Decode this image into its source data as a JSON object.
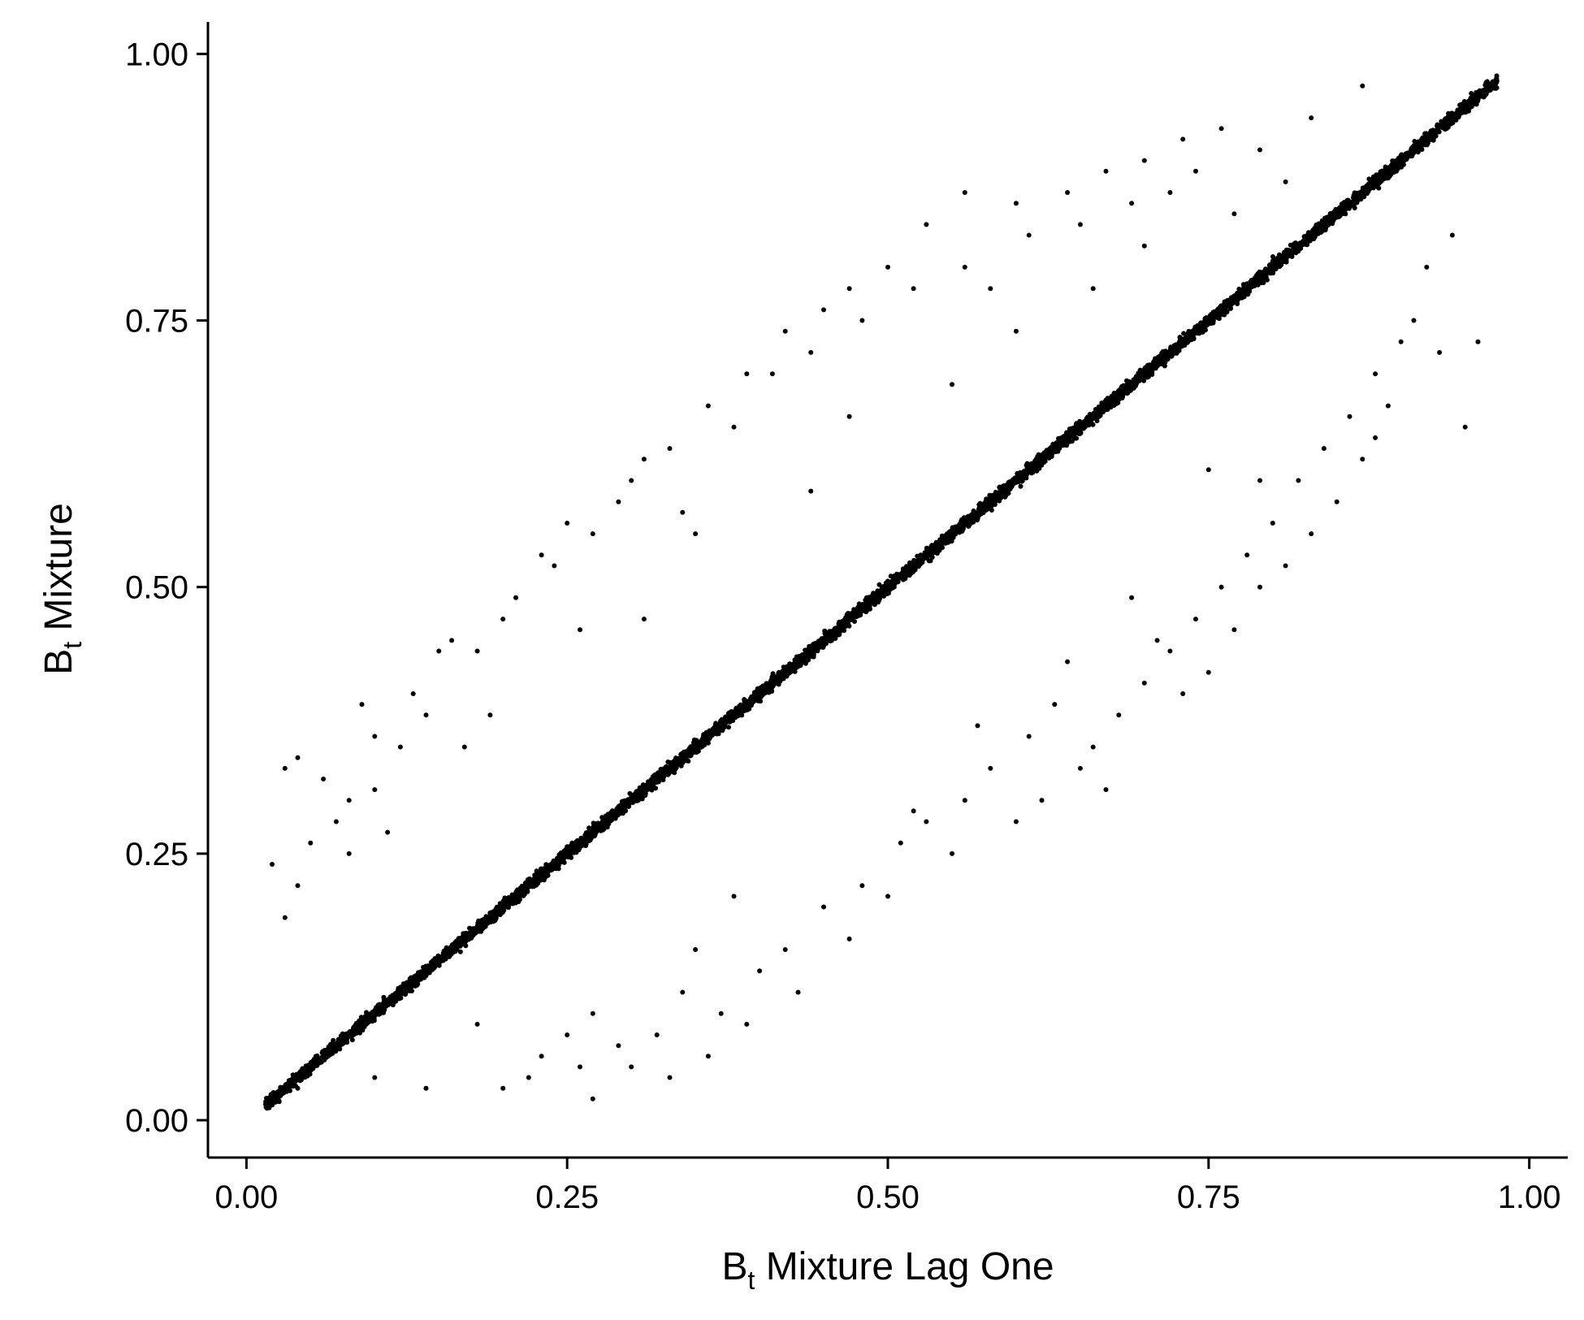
{
  "chart_data": {
    "type": "scatter",
    "title": "",
    "xlabel": {
      "base": "B",
      "sub": "t",
      "rest": " Mixture Lag One"
    },
    "ylabel": {
      "base": "B",
      "sub": "t",
      "rest": " Mixture"
    },
    "xlim": [
      -0.03,
      1.03
    ],
    "ylim": [
      -0.035,
      1.03
    ],
    "xticks": [
      0,
      0.25,
      0.5,
      0.75,
      1
    ],
    "yticks": [
      0,
      0.25,
      0.5,
      0.75,
      1
    ],
    "xtick_labels": [
      "0.00",
      "0.25",
      "0.50",
      "0.75",
      "1.00"
    ],
    "ytick_labels": [
      "0.00",
      "0.25",
      "0.50",
      "0.75",
      "1.00"
    ],
    "grid": false,
    "legend": "none",
    "point_color": "#000000",
    "series": [
      {
        "type": "dense-diagonal-band",
        "x_range": [
          0.015,
          0.975
        ],
        "y_equals_x_spread": 0.012,
        "description_points_estimated": 6000
      },
      {
        "type": "points",
        "values": [
          [
            0.03,
            0.33
          ],
          [
            0.04,
            0.34
          ],
          [
            0.06,
            0.32
          ],
          [
            0.09,
            0.39
          ],
          [
            0.1,
            0.36
          ],
          [
            0.13,
            0.4
          ],
          [
            0.15,
            0.44
          ],
          [
            0.16,
            0.45
          ],
          [
            0.2,
            0.47
          ],
          [
            0.23,
            0.53
          ],
          [
            0.25,
            0.56
          ],
          [
            0.27,
            0.55
          ],
          [
            0.3,
            0.6
          ],
          [
            0.31,
            0.62
          ],
          [
            0.33,
            0.63
          ],
          [
            0.36,
            0.67
          ],
          [
            0.39,
            0.7
          ],
          [
            0.42,
            0.74
          ],
          [
            0.45,
            0.76
          ],
          [
            0.47,
            0.78
          ],
          [
            0.5,
            0.8
          ],
          [
            0.53,
            0.84
          ],
          [
            0.56,
            0.87
          ],
          [
            0.6,
            0.86
          ],
          [
            0.64,
            0.87
          ],
          [
            0.67,
            0.89
          ],
          [
            0.7,
            0.9
          ],
          [
            0.73,
            0.92
          ],
          [
            0.76,
            0.93
          ],
          [
            0.79,
            0.91
          ],
          [
            0.83,
            0.94
          ],
          [
            0.87,
            0.97
          ],
          [
            0.02,
            0.24
          ],
          [
            0.05,
            0.26
          ],
          [
            0.07,
            0.28
          ],
          [
            0.08,
            0.3
          ],
          [
            0.1,
            0.31
          ],
          [
            0.12,
            0.35
          ],
          [
            0.14,
            0.38
          ],
          [
            0.18,
            0.44
          ],
          [
            0.21,
            0.49
          ],
          [
            0.24,
            0.52
          ],
          [
            0.29,
            0.58
          ],
          [
            0.34,
            0.57
          ],
          [
            0.38,
            0.65
          ],
          [
            0.41,
            0.7
          ],
          [
            0.44,
            0.72
          ],
          [
            0.48,
            0.75
          ],
          [
            0.52,
            0.78
          ],
          [
            0.56,
            0.8
          ],
          [
            0.58,
            0.78
          ],
          [
            0.61,
            0.83
          ],
          [
            0.65,
            0.84
          ],
          [
            0.69,
            0.86
          ],
          [
            0.72,
            0.87
          ],
          [
            0.74,
            0.89
          ],
          [
            0.77,
            0.85
          ],
          [
            0.81,
            0.88
          ],
          [
            0.03,
            0.19
          ],
          [
            0.04,
            0.22
          ],
          [
            0.08,
            0.25
          ],
          [
            0.11,
            0.27
          ],
          [
            0.17,
            0.35
          ],
          [
            0.19,
            0.38
          ],
          [
            0.26,
            0.46
          ],
          [
            0.31,
            0.47
          ],
          [
            0.35,
            0.55
          ],
          [
            0.44,
            0.59
          ],
          [
            0.47,
            0.66
          ],
          [
            0.55,
            0.69
          ],
          [
            0.6,
            0.74
          ],
          [
            0.66,
            0.78
          ],
          [
            0.7,
            0.82
          ],
          [
            0.04,
            0.03
          ],
          [
            0.1,
            0.04
          ],
          [
            0.14,
            0.03
          ],
          [
            0.2,
            0.03
          ],
          [
            0.23,
            0.06
          ],
          [
            0.25,
            0.08
          ],
          [
            0.27,
            0.1
          ],
          [
            0.3,
            0.05
          ],
          [
            0.32,
            0.08
          ],
          [
            0.34,
            0.12
          ],
          [
            0.37,
            0.1
          ],
          [
            0.4,
            0.14
          ],
          [
            0.42,
            0.16
          ],
          [
            0.45,
            0.2
          ],
          [
            0.48,
            0.22
          ],
          [
            0.51,
            0.26
          ],
          [
            0.53,
            0.28
          ],
          [
            0.56,
            0.3
          ],
          [
            0.58,
            0.33
          ],
          [
            0.61,
            0.36
          ],
          [
            0.63,
            0.39
          ],
          [
            0.66,
            0.35
          ],
          [
            0.68,
            0.38
          ],
          [
            0.7,
            0.41
          ],
          [
            0.72,
            0.44
          ],
          [
            0.74,
            0.47
          ],
          [
            0.76,
            0.5
          ],
          [
            0.78,
            0.53
          ],
          [
            0.8,
            0.56
          ],
          [
            0.82,
            0.6
          ],
          [
            0.84,
            0.63
          ],
          [
            0.86,
            0.66
          ],
          [
            0.88,
            0.7
          ],
          [
            0.9,
            0.73
          ],
          [
            0.92,
            0.8
          ],
          [
            0.94,
            0.83
          ],
          [
            0.22,
            0.04
          ],
          [
            0.26,
            0.05
          ],
          [
            0.29,
            0.07
          ],
          [
            0.33,
            0.04
          ],
          [
            0.36,
            0.06
          ],
          [
            0.39,
            0.09
          ],
          [
            0.43,
            0.12
          ],
          [
            0.47,
            0.17
          ],
          [
            0.5,
            0.21
          ],
          [
            0.55,
            0.25
          ],
          [
            0.6,
            0.28
          ],
          [
            0.62,
            0.3
          ],
          [
            0.65,
            0.33
          ],
          [
            0.67,
            0.31
          ],
          [
            0.73,
            0.4
          ],
          [
            0.75,
            0.42
          ],
          [
            0.77,
            0.46
          ],
          [
            0.79,
            0.5
          ],
          [
            0.81,
            0.52
          ],
          [
            0.83,
            0.55
          ],
          [
            0.85,
            0.58
          ],
          [
            0.87,
            0.62
          ],
          [
            0.89,
            0.67
          ],
          [
            0.91,
            0.75
          ],
          [
            0.95,
            0.65
          ],
          [
            0.18,
            0.09
          ],
          [
            0.27,
            0.02
          ],
          [
            0.35,
            0.16
          ],
          [
            0.38,
            0.21
          ],
          [
            0.52,
            0.29
          ],
          [
            0.57,
            0.37
          ],
          [
            0.64,
            0.43
          ],
          [
            0.69,
            0.49
          ],
          [
            0.71,
            0.45
          ],
          [
            0.75,
            0.61
          ],
          [
            0.79,
            0.6
          ],
          [
            0.88,
            0.64
          ],
          [
            0.93,
            0.72
          ],
          [
            0.96,
            0.73
          ]
        ]
      }
    ]
  }
}
